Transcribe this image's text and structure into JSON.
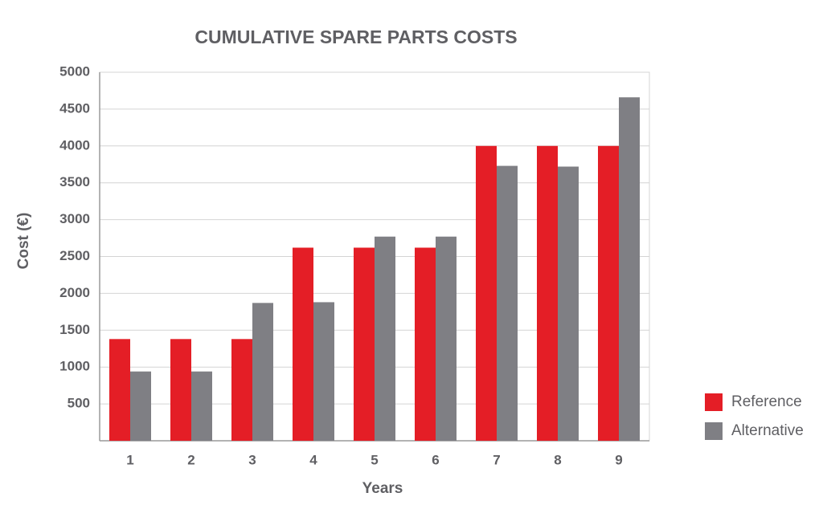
{
  "chart_data": {
    "type": "bar",
    "title": "CUMULATIVE SPARE PARTS COSTS",
    "x_label": "Years",
    "y_label": "Cost (€)",
    "categories": [
      "1",
      "2",
      "3",
      "4",
      "5",
      "6",
      "7",
      "8",
      "9"
    ],
    "series": [
      {
        "name": "Reference",
        "color": "#e41e26",
        "values": [
          1380,
          1380,
          1380,
          2620,
          2620,
          2620,
          4000,
          4000,
          4000
        ]
      },
      {
        "name": "Alternative",
        "color": "#7f7f84",
        "values": [
          940,
          940,
          1870,
          1880,
          2770,
          2770,
          3730,
          3720,
          4660
        ]
      }
    ],
    "ylim": [
      0,
      5000
    ],
    "yticks": [
      500,
      1000,
      1500,
      2000,
      2500,
      3000,
      3500,
      4000,
      4500,
      5000
    ],
    "grid": true,
    "legend": "bottom-right"
  }
}
